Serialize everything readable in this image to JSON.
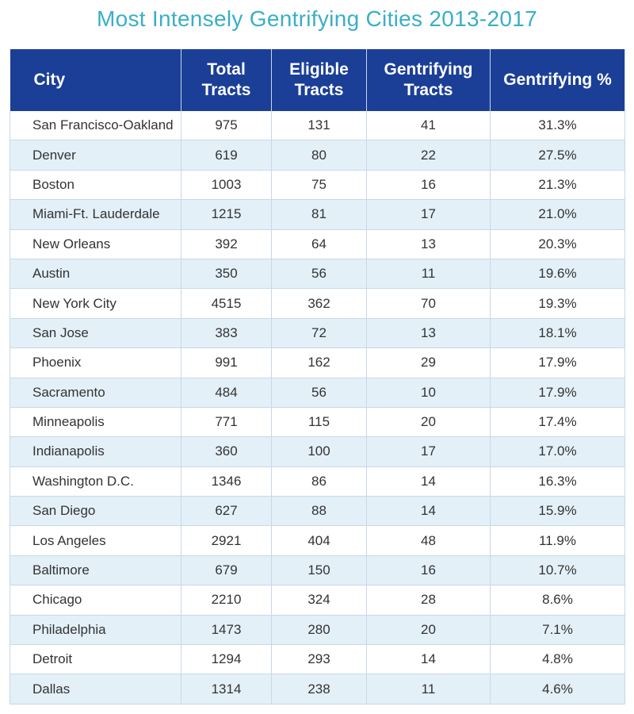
{
  "title": "Most Intensely Gentrifying Cities 2013-2017",
  "table": {
    "header": [
      "City",
      "Total Tracts",
      "Eligible Tracts",
      "Gentrifying Tracts",
      "Gentrifying %"
    ],
    "rows": [
      [
        "San Francisco-Oakland",
        "975",
        "131",
        "41",
        "31.3%"
      ],
      [
        "Denver",
        "619",
        "80",
        "22",
        "27.5%"
      ],
      [
        "Boston",
        "1003",
        "75",
        "16",
        "21.3%"
      ],
      [
        "Miami-Ft. Lauderdale",
        "1215",
        "81",
        "17",
        "21.0%"
      ],
      [
        "New Orleans",
        "392",
        "64",
        "13",
        "20.3%"
      ],
      [
        "Austin",
        "350",
        "56",
        "11",
        "19.6%"
      ],
      [
        "New York City",
        "4515",
        "362",
        "70",
        "19.3%"
      ],
      [
        "San Jose",
        "383",
        "72",
        "13",
        "18.1%"
      ],
      [
        "Phoenix",
        "991",
        "162",
        "29",
        "17.9%"
      ],
      [
        "Sacramento",
        "484",
        "56",
        "10",
        "17.9%"
      ],
      [
        "Minneapolis",
        "771",
        "115",
        "20",
        "17.4%"
      ],
      [
        "Indianapolis",
        "360",
        "100",
        "17",
        "17.0%"
      ],
      [
        "Washington D.C.",
        "1346",
        "86",
        "14",
        "16.3%"
      ],
      [
        "San Diego",
        "627",
        "88",
        "14",
        "15.9%"
      ],
      [
        "Los Angeles",
        "2921",
        "404",
        "48",
        "11.9%"
      ],
      [
        "Baltimore",
        "679",
        "150",
        "16",
        "10.7%"
      ],
      [
        "Chicago",
        "2210",
        "324",
        "28",
        "8.6%"
      ],
      [
        "Philadelphia",
        "1473",
        "280",
        "20",
        "7.1%"
      ],
      [
        "Detroit",
        "1294",
        "293",
        "14",
        "4.8%"
      ],
      [
        "Dallas",
        "1314",
        "238",
        "11",
        "4.6%"
      ]
    ]
  }
}
